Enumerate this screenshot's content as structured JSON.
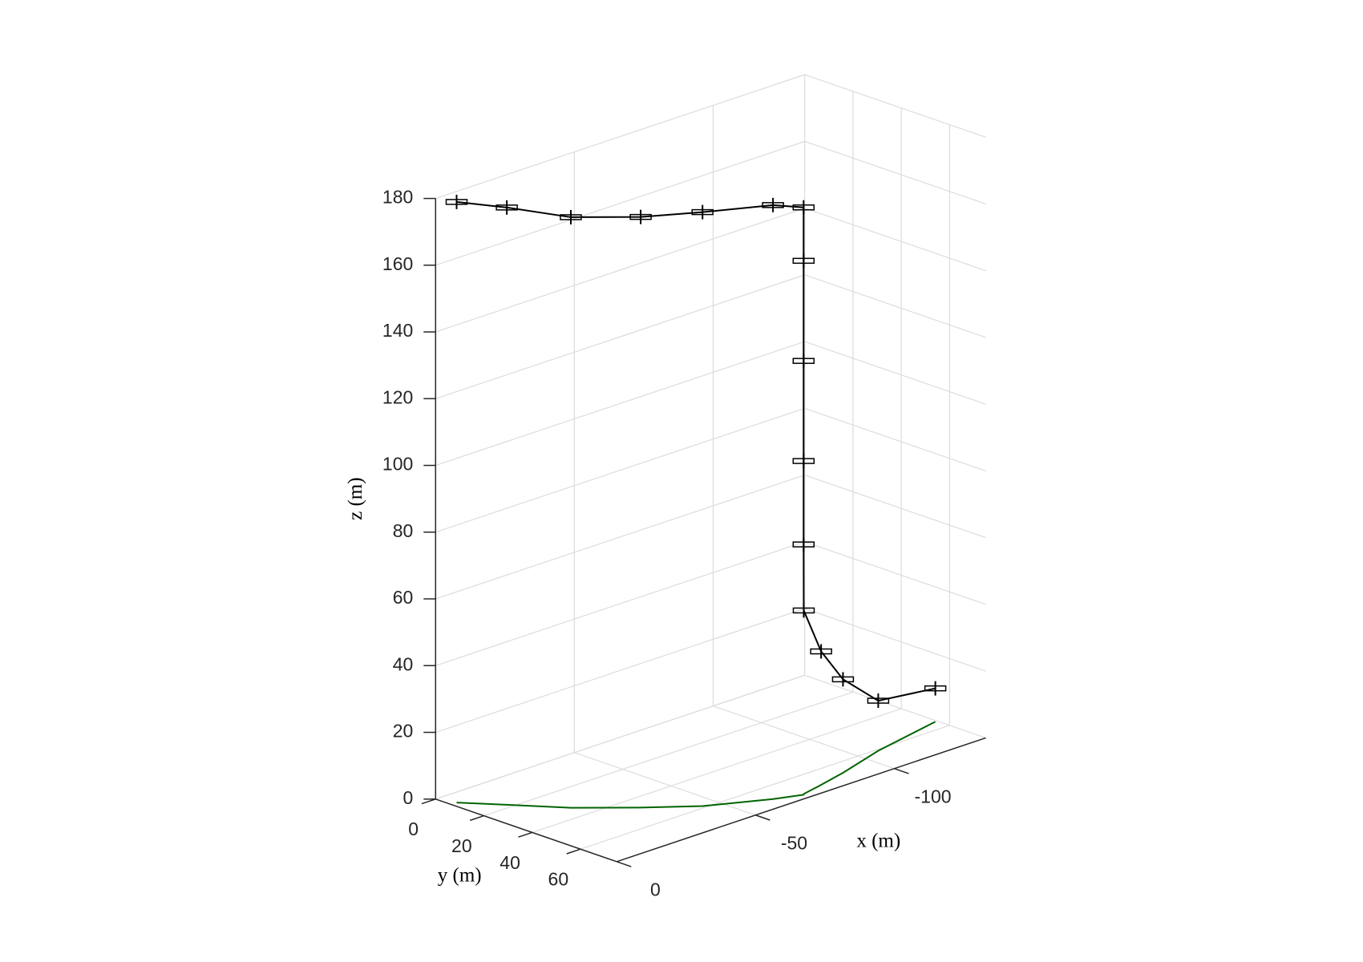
{
  "chart_data": {
    "type": "line3d",
    "xlabel": "x (m)",
    "ylabel": "y (m)",
    "zlabel": "z (m)",
    "xlim": [
      -133,
      0
    ],
    "ylim": [
      0,
      75
    ],
    "zlim": [
      0,
      180
    ],
    "xticks": [
      -100,
      -50,
      0
    ],
    "yticks": [
      0,
      20,
      40,
      60
    ],
    "zticks": [
      0,
      20,
      40,
      60,
      80,
      100,
      120,
      140,
      160,
      180
    ],
    "grid": true,
    "ground_track": true,
    "ground_track_color": "#006400",
    "series": [
      {
        "color": "#000000",
        "x": [
          -2,
          -10,
          -20.1,
          -33,
          -45.1,
          -61.7,
          -69.6,
          -69.6,
          -69.6,
          -69.6,
          -69.6,
          -70,
          -78,
          -88.4,
          -106.5,
          -132.3
        ],
        "y": [
          6.4,
          18,
          32.9,
          47,
          58.7,
          68.8,
          72.4,
          72.4,
          72.4,
          72.4,
          72.4,
          72,
          70,
          67.1,
          60.9,
          54.9
        ],
        "z": [
          180,
          179,
          177,
          177,
          178,
          178,
          176,
          160,
          130,
          100,
          75,
          55,
          40,
          28,
          15,
          10
        ]
      }
    ]
  }
}
